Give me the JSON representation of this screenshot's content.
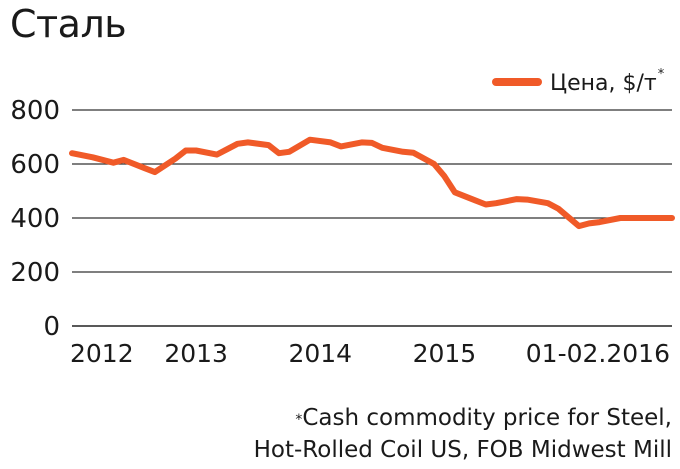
{
  "title": "Сталь",
  "footnote": {
    "marker": "*",
    "line1": "Cash commodity price for Steel,",
    "line2": "Hot-Rolled Coil US, FOB Midwest Mill"
  },
  "chart_data": {
    "type": "line",
    "ylim": [
      0,
      800
    ],
    "yticks": [
      0,
      200,
      400,
      600,
      800
    ],
    "xtick_labels": [
      "2012",
      "2013",
      "2014",
      "2015",
      "01-02.2016"
    ],
    "xtick_positions": [
      0,
      12,
      24,
      36,
      48
    ],
    "grid": "horizontal",
    "legend_position": "top-right",
    "series": [
      {
        "name": "Цена, $/т",
        "name_marker": "*",
        "color": "#f05a28",
        "x": [
          0,
          2,
          4,
          5,
          7,
          8,
          10,
          11,
          12,
          14,
          15,
          16,
          17,
          19,
          20,
          21,
          23,
          25,
          26,
          28,
          29,
          30,
          32,
          33,
          35,
          36,
          37,
          39,
          40,
          41,
          43,
          44,
          46,
          47,
          49,
          50,
          51,
          53,
          54,
          56,
          57,
          58
        ],
        "y": [
          640,
          625,
          605,
          615,
          585,
          570,
          620,
          650,
          650,
          635,
          655,
          675,
          680,
          670,
          640,
          645,
          690,
          680,
          665,
          680,
          678,
          660,
          645,
          642,
          600,
          555,
          495,
          465,
          450,
          455,
          470,
          468,
          455,
          435,
          370,
          380,
          385,
          400,
          400,
          400,
          400,
          400
        ]
      }
    ]
  }
}
